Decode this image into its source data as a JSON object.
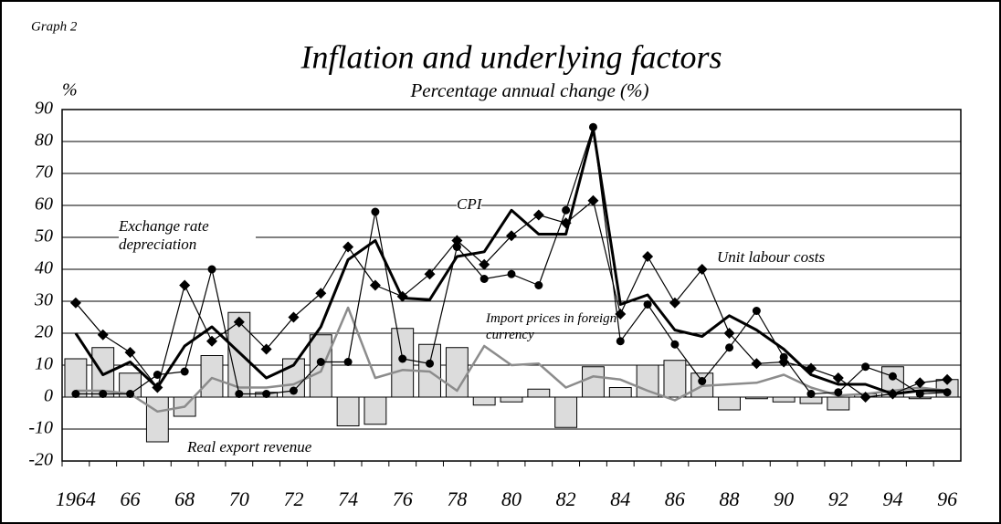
{
  "chart_data": {
    "type": "bar-line",
    "label": "Graph 2",
    "title": "Inflation and underlying  factors",
    "subtitle": "Percentage annual change (%)",
    "y_unit": "%",
    "categories": [
      "1964",
      null,
      "66",
      null,
      "68",
      null,
      "70",
      null,
      "72",
      null,
      "74",
      null,
      "76",
      null,
      "78",
      null,
      "80",
      null,
      "82",
      null,
      "84",
      null,
      "86",
      null,
      "88",
      null,
      "90",
      null,
      "92",
      null,
      "94",
      null,
      "96"
    ],
    "ylim": [
      -20,
      90
    ],
    "yticks": [
      -20,
      -10,
      0,
      10,
      20,
      30,
      40,
      50,
      60,
      70,
      80,
      90
    ],
    "grid": true,
    "series": [
      {
        "name": "Real export revenue",
        "kind": "bar",
        "color": "#dcdcdc",
        "values": [
          12,
          15.5,
          7.5,
          -14,
          -6,
          13,
          26.5,
          1.5,
          12,
          19.5,
          -9,
          -8.5,
          21.5,
          16.5,
          15.5,
          -2.5,
          -1.5,
          2.5,
          -9.5,
          9.5,
          3,
          10,
          11.5,
          7.5,
          -4,
          -0.5,
          -1.5,
          -2,
          -4,
          1,
          9.5,
          -0.5,
          5.5
        ]
      },
      {
        "name": "Exchange rate depreciation",
        "kind": "line-circle",
        "color": "#000000",
        "values": [
          1,
          1,
          1,
          7,
          8,
          40,
          1,
          1,
          2,
          11,
          11,
          58,
          12,
          10.5,
          47,
          37,
          38.5,
          35,
          58.5,
          84.5,
          17.5,
          29,
          16.5,
          5,
          15.5,
          27,
          12.5,
          1,
          1.5,
          9.5,
          6.5,
          1,
          1.5
        ]
      },
      {
        "name": "Unit labour costs",
        "kind": "line-diamond",
        "color": "#000000",
        "values": [
          29.5,
          19.5,
          14,
          3,
          35,
          17.5,
          23.5,
          15,
          25,
          32.5,
          47,
          35,
          31.5,
          38.5,
          49,
          41.5,
          50.5,
          57,
          54.5,
          61.5,
          26,
          44,
          29.5,
          40,
          20,
          10.5,
          11,
          9,
          6,
          0,
          1,
          4.5,
          5.5
        ]
      },
      {
        "name": "CPI",
        "kind": "line-thick",
        "color": "#000000",
        "values": [
          20,
          7,
          11,
          3,
          16,
          22,
          14,
          6,
          10,
          22,
          43,
          49,
          31,
          30.5,
          44,
          45.5,
          58.5,
          51,
          51,
          84,
          29,
          32,
          21,
          19,
          25.5,
          21,
          15,
          7,
          4,
          4,
          1,
          2,
          2
        ]
      },
      {
        "name": "Import prices in foreign currency",
        "kind": "line",
        "color": "#8c8c8c",
        "values": [
          2,
          2,
          1,
          -4.5,
          -3,
          6,
          3,
          3,
          4,
          8,
          28,
          6,
          8.5,
          8,
          2,
          16,
          10,
          10.5,
          3,
          6.5,
          5.5,
          2,
          -1,
          3.5,
          4,
          4.5,
          7,
          3,
          0.5,
          1,
          2,
          3,
          2
        ]
      }
    ]
  }
}
